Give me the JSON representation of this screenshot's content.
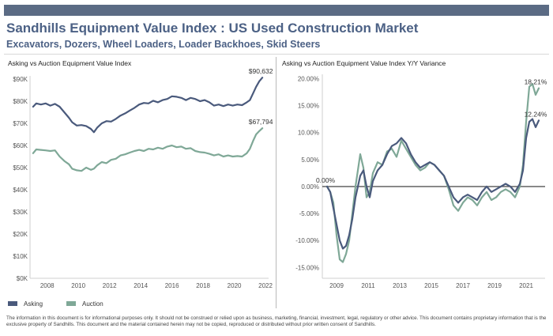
{
  "title": "Sandhills Equipment Value Index : US Used Construction Market",
  "subtitle": "Excavators, Dozers, Wheel Loaders, Loader Backhoes, Skid Steers",
  "colors": {
    "header_bar": "#5b6b84",
    "title": "#4c6185",
    "subtitle": "#4c6185",
    "asking": "#4a5a7c",
    "auction": "#7fa897"
  },
  "legend": [
    {
      "name": "Asking",
      "color": "#4a5a7c"
    },
    {
      "name": "Auction",
      "color": "#7fa897"
    }
  ],
  "disclaimer": "The information in this document is for informational purposes only.  It should not be construed or relied upon as business, marketing, financial, investment, legal, regulatory or other advice. This document contains proprietary information that is the exclusive property of Sandhills. This document and the material contained herein may not be copied, reproduced or distributed without prior written consent of Sandhills.",
  "chart_data": [
    {
      "type": "line",
      "title": "Asking vs Auction Equipment Value Index",
      "xlim": [
        2006.9,
        2022.2
      ],
      "ylim": [
        0,
        90000
      ],
      "x_ticks": [
        "2008",
        "2010",
        "2012",
        "2014",
        "2016",
        "2018",
        "2020",
        "2022"
      ],
      "y_ticks": [
        "$0K",
        "$10K",
        "$20K",
        "$30K",
        "$40K",
        "$50K",
        "$60K",
        "$70K",
        "$80K",
        "$90K"
      ],
      "grid": false,
      "end_labels": [
        "$90,632",
        "$67,794"
      ],
      "series": [
        {
          "name": "Asking",
          "x": [
            2007.1,
            2007.3,
            2007.6,
            2007.9,
            2008.2,
            2008.5,
            2008.8,
            2009.1,
            2009.4,
            2009.6,
            2009.9,
            2010.2,
            2010.5,
            2010.8,
            2011.0,
            2011.2,
            2011.5,
            2011.8,
            2012.1,
            2012.4,
            2012.7,
            2013.0,
            2013.3,
            2013.6,
            2013.9,
            2014.2,
            2014.5,
            2014.8,
            2015.1,
            2015.4,
            2015.7,
            2016.0,
            2016.3,
            2016.6,
            2016.9,
            2017.2,
            2017.5,
            2017.8,
            2018.1,
            2018.4,
            2018.7,
            2019.0,
            2019.3,
            2019.6,
            2019.9,
            2020.2,
            2020.5,
            2020.8,
            2021.0,
            2021.2,
            2021.4,
            2021.6,
            2021.8
          ],
          "values": [
            77500,
            79000,
            78500,
            79000,
            78000,
            78800,
            77500,
            75000,
            72500,
            70500,
            69000,
            69200,
            68800,
            67500,
            66000,
            68000,
            70000,
            71000,
            70800,
            72000,
            73500,
            74500,
            75800,
            77000,
            78500,
            79200,
            79000,
            80200,
            79500,
            80500,
            81000,
            82200,
            82000,
            81500,
            80500,
            81500,
            81000,
            80000,
            80500,
            79500,
            78000,
            78500,
            77800,
            78500,
            78000,
            78500,
            78200,
            79500,
            80500,
            83500,
            86500,
            89000,
            90632
          ]
        },
        {
          "name": "Auction",
          "x": [
            2007.1,
            2007.3,
            2007.6,
            2007.9,
            2008.2,
            2008.5,
            2008.8,
            2009.1,
            2009.4,
            2009.6,
            2009.9,
            2010.2,
            2010.5,
            2010.8,
            2011.0,
            2011.2,
            2011.5,
            2011.8,
            2012.1,
            2012.4,
            2012.7,
            2013.0,
            2013.3,
            2013.6,
            2013.9,
            2014.2,
            2014.5,
            2014.8,
            2015.1,
            2015.4,
            2015.7,
            2016.0,
            2016.3,
            2016.6,
            2016.9,
            2017.2,
            2017.5,
            2017.8,
            2018.1,
            2018.4,
            2018.7,
            2019.0,
            2019.3,
            2019.6,
            2019.9,
            2020.2,
            2020.5,
            2020.8,
            2021.0,
            2021.2,
            2021.4,
            2021.6,
            2021.8
          ],
          "values": [
            56500,
            58200,
            58000,
            57800,
            57500,
            57800,
            55000,
            53000,
            51500,
            49500,
            48800,
            48500,
            50000,
            49000,
            49500,
            51000,
            52500,
            52000,
            53500,
            54000,
            55500,
            56000,
            56800,
            57500,
            58000,
            57500,
            58500,
            58200,
            59000,
            58500,
            59500,
            60000,
            59200,
            59500,
            58500,
            58800,
            57500,
            57000,
            56800,
            56200,
            55500,
            56000,
            55000,
            55500,
            55000,
            55200,
            55000,
            56500,
            58500,
            62000,
            65000,
            66500,
            67794
          ]
        }
      ]
    },
    {
      "type": "line",
      "title": "Asking vs Auction Equipment Value Index Y/Y Variance",
      "xlim": [
        2008.1,
        2022.2
      ],
      "ylim": [
        -0.17,
        0.205
      ],
      "x_ticks": [
        "2009",
        "2011",
        "2013",
        "2015",
        "2017",
        "2019",
        "2021"
      ],
      "y_ticks": [
        "-15.00%",
        "-10.00%",
        "-5.00%",
        "0.00%",
        "5.00%",
        "10.00%",
        "15.00%",
        "20.00%"
      ],
      "grid": false,
      "start_label": "0.00%",
      "end_labels": [
        "18.21%",
        "12.24%"
      ],
      "series": [
        {
          "name": "Auction",
          "x": [
            2008.4,
            2008.6,
            2008.8,
            2009.0,
            2009.2,
            2009.4,
            2009.6,
            2009.8,
            2010.0,
            2010.2,
            2010.5,
            2010.7,
            2010.9,
            2011.1,
            2011.3,
            2011.6,
            2011.9,
            2012.2,
            2012.5,
            2012.8,
            2013.1,
            2013.4,
            2013.7,
            2014.0,
            2014.3,
            2014.6,
            2014.9,
            2015.2,
            2015.5,
            2015.8,
            2016.1,
            2016.4,
            2016.7,
            2017.0,
            2017.3,
            2017.6,
            2017.9,
            2018.2,
            2018.5,
            2018.8,
            2019.1,
            2019.4,
            2019.7,
            2020.0,
            2020.3,
            2020.6,
            2020.8,
            2021.0,
            2021.2,
            2021.4,
            2021.6,
            2021.8
          ],
          "values": [
            0.0,
            -0.01,
            -0.03,
            -0.09,
            -0.135,
            -0.14,
            -0.125,
            -0.1,
            -0.05,
            0.0,
            0.06,
            0.035,
            -0.02,
            -0.01,
            0.025,
            0.045,
            0.04,
            0.065,
            0.07,
            0.055,
            0.085,
            0.07,
            0.055,
            0.04,
            0.03,
            0.035,
            0.045,
            0.04,
            0.03,
            0.02,
            -0.005,
            -0.035,
            -0.045,
            -0.03,
            -0.02,
            -0.025,
            -0.035,
            -0.02,
            -0.01,
            -0.025,
            -0.02,
            -0.01,
            -0.005,
            -0.01,
            -0.02,
            0.0,
            0.04,
            0.12,
            0.185,
            0.19,
            0.17,
            0.1821
          ]
        },
        {
          "name": "Asking",
          "x": [
            2008.4,
            2008.6,
            2008.8,
            2009.0,
            2009.2,
            2009.4,
            2009.6,
            2009.8,
            2010.0,
            2010.2,
            2010.5,
            2010.7,
            2010.9,
            2011.1,
            2011.3,
            2011.6,
            2011.9,
            2012.2,
            2012.5,
            2012.8,
            2013.1,
            2013.4,
            2013.7,
            2014.0,
            2014.3,
            2014.6,
            2014.9,
            2015.2,
            2015.5,
            2015.8,
            2016.1,
            2016.4,
            2016.7,
            2017.0,
            2017.3,
            2017.6,
            2017.9,
            2018.2,
            2018.5,
            2018.8,
            2019.1,
            2019.4,
            2019.7,
            2020.0,
            2020.3,
            2020.6,
            2020.8,
            2021.0,
            2021.2,
            2021.4,
            2021.6,
            2021.8
          ],
          "values": [
            0.0,
            -0.01,
            -0.04,
            -0.07,
            -0.1,
            -0.115,
            -0.11,
            -0.09,
            -0.06,
            -0.02,
            0.02,
            0.03,
            0.0,
            -0.02,
            0.01,
            0.03,
            0.04,
            0.06,
            0.075,
            0.08,
            0.09,
            0.08,
            0.06,
            0.045,
            0.035,
            0.04,
            0.045,
            0.04,
            0.03,
            0.02,
            0.0,
            -0.02,
            -0.03,
            -0.02,
            -0.015,
            -0.02,
            -0.025,
            -0.01,
            0.0,
            -0.01,
            -0.005,
            0.0,
            0.005,
            0.0,
            -0.01,
            0.005,
            0.03,
            0.09,
            0.12,
            0.125,
            0.11,
            0.1224
          ]
        }
      ]
    }
  ]
}
